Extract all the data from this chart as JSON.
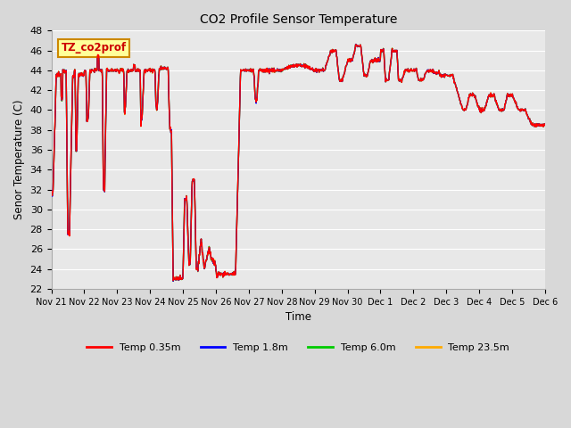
{
  "title": "CO2 Profile Sensor Temperature",
  "ylabel": "Senor Temperature (C)",
  "xlabel": "Time",
  "ylim": [
    22,
    48
  ],
  "yticks": [
    22,
    24,
    26,
    28,
    30,
    32,
    34,
    36,
    38,
    40,
    42,
    44,
    46,
    48
  ],
  "xtick_labels": [
    "Nov 21",
    "Nov 22",
    "Nov 23",
    "Nov 24",
    "Nov 25",
    "Nov 26",
    "Nov 27",
    "Nov 28",
    "Nov 29",
    "Nov 30",
    "Dec 1",
    "Dec 2",
    "Dec 3",
    "Dec 4",
    "Dec 5",
    "Dec 6"
  ],
  "colors": {
    "Temp 0.35m": "#ff0000",
    "Temp 1.8m": "#0000ff",
    "Temp 6.0m": "#00cc00",
    "Temp 23.5m": "#ffaa00"
  },
  "legend_label": "TZ_co2prof",
  "legend_box_facecolor": "#ffff99",
  "legend_box_edgecolor": "#cc8800",
  "fig_facecolor": "#d8d8d8",
  "plot_facecolor": "#e8e8e8",
  "grid_color": "#ffffff",
  "linewidth": 1.0,
  "figsize": [
    6.4,
    4.8
  ],
  "dpi": 100
}
